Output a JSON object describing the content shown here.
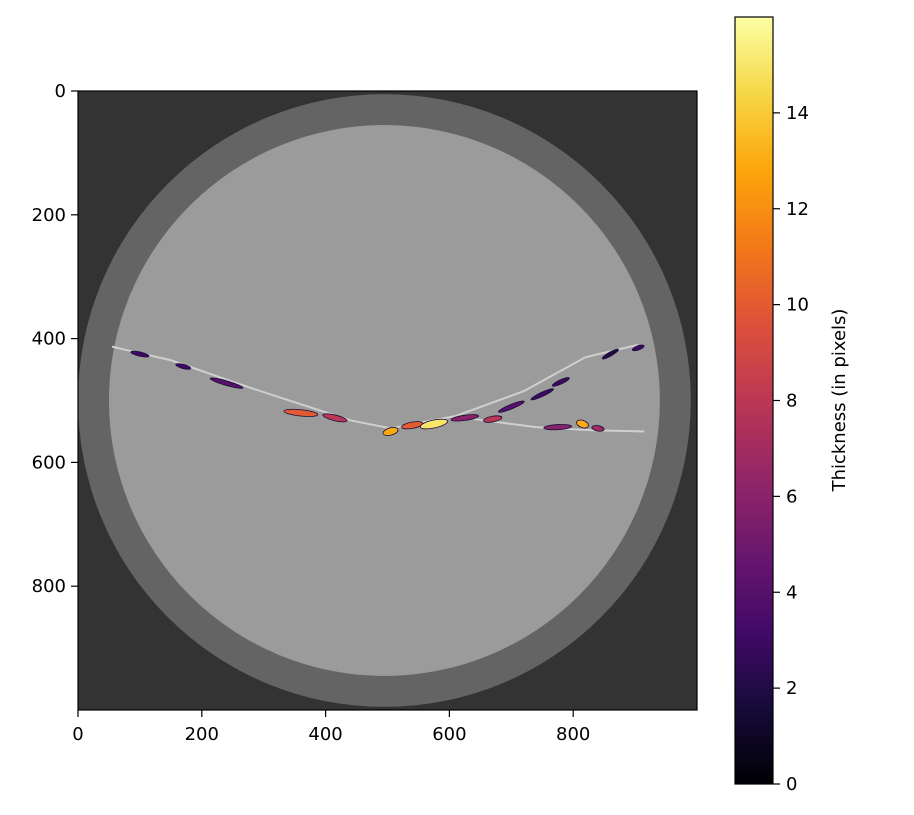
{
  "chart_data": {
    "type": "heatmap",
    "description_free": true,
    "image": {
      "x_range": [
        0,
        1000
      ],
      "y_range": [
        0,
        1000
      ],
      "x_ticks": [
        0,
        200,
        400,
        600,
        800
      ],
      "y_ticks": [
        0,
        200,
        400,
        600,
        800
      ],
      "background_color": "#333333",
      "specimen": {
        "center": [
          495,
          500
        ],
        "outer_radius": 495,
        "inner_radius": 445,
        "ring_color": "#646464",
        "core_color": "#9b9b9b"
      },
      "crack_line": {
        "color": "#cfcfcf",
        "points": [
          [
            55,
            413
          ],
          [
            150,
            435
          ],
          [
            280,
            480
          ],
          [
            440,
            532
          ],
          [
            505,
            545
          ],
          [
            610,
            525
          ],
          [
            720,
            485
          ],
          [
            820,
            430
          ],
          [
            905,
            410
          ]
        ]
      },
      "crack_line_lower": {
        "color": "#cfcfcf",
        "points": [
          [
            640,
            530
          ],
          [
            740,
            543
          ],
          [
            830,
            548
          ],
          [
            915,
            550
          ]
        ]
      }
    },
    "overlay_features": [
      {
        "x": 100,
        "y": 425,
        "len": 30,
        "angle": 13,
        "thickness": 3
      },
      {
        "x": 170,
        "y": 445,
        "len": 25,
        "angle": 15,
        "thickness": 3
      },
      {
        "x": 240,
        "y": 472,
        "len": 55,
        "angle": 16,
        "thickness": 4
      },
      {
        "x": 360,
        "y": 520,
        "len": 55,
        "angle": 6,
        "thickness": 10
      },
      {
        "x": 415,
        "y": 528,
        "len": 40,
        "angle": 14,
        "thickness": 8
      },
      {
        "x": 505,
        "y": 550,
        "len": 25,
        "angle": -15,
        "thickness": 13
      },
      {
        "x": 540,
        "y": 540,
        "len": 35,
        "angle": -10,
        "thickness": 10
      },
      {
        "x": 575,
        "y": 538,
        "len": 45,
        "angle": -12,
        "thickness": 15
      },
      {
        "x": 625,
        "y": 528,
        "len": 45,
        "angle": -8,
        "thickness": 6
      },
      {
        "x": 670,
        "y": 530,
        "len": 30,
        "angle": -10,
        "thickness": 8
      },
      {
        "x": 700,
        "y": 510,
        "len": 45,
        "angle": -22,
        "thickness": 4
      },
      {
        "x": 750,
        "y": 490,
        "len": 40,
        "angle": -25,
        "thickness": 3
      },
      {
        "x": 780,
        "y": 470,
        "len": 30,
        "angle": -25,
        "thickness": 3
      },
      {
        "x": 860,
        "y": 425,
        "len": 30,
        "angle": -30,
        "thickness": 2
      },
      {
        "x": 775,
        "y": 543,
        "len": 45,
        "angle": -3,
        "thickness": 6
      },
      {
        "x": 815,
        "y": 538,
        "len": 20,
        "angle": 20,
        "thickness": 13
      },
      {
        "x": 840,
        "y": 545,
        "len": 20,
        "angle": 10,
        "thickness": 7
      },
      {
        "x": 905,
        "y": 415,
        "len": 20,
        "angle": -20,
        "thickness": 3
      }
    ],
    "colorbar": {
      "label": "Thickness (in pixels)",
      "colormap": "inferno",
      "range": [
        0,
        16
      ],
      "ticks": [
        0,
        2,
        4,
        6,
        8,
        10,
        12,
        14
      ]
    }
  }
}
